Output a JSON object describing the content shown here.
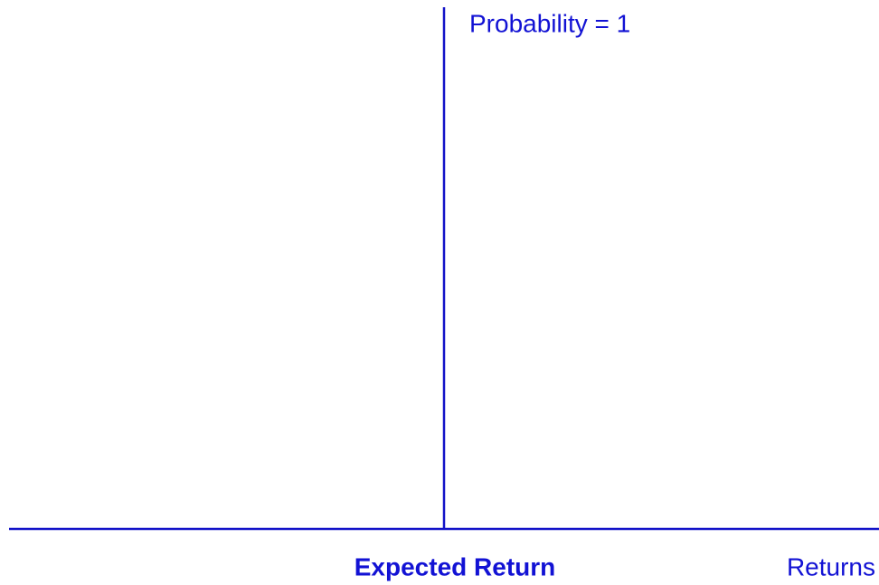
{
  "diagram": {
    "spike_label": "Probability = 1",
    "center_label": "Expected Return",
    "axis_label": "Returns"
  }
}
